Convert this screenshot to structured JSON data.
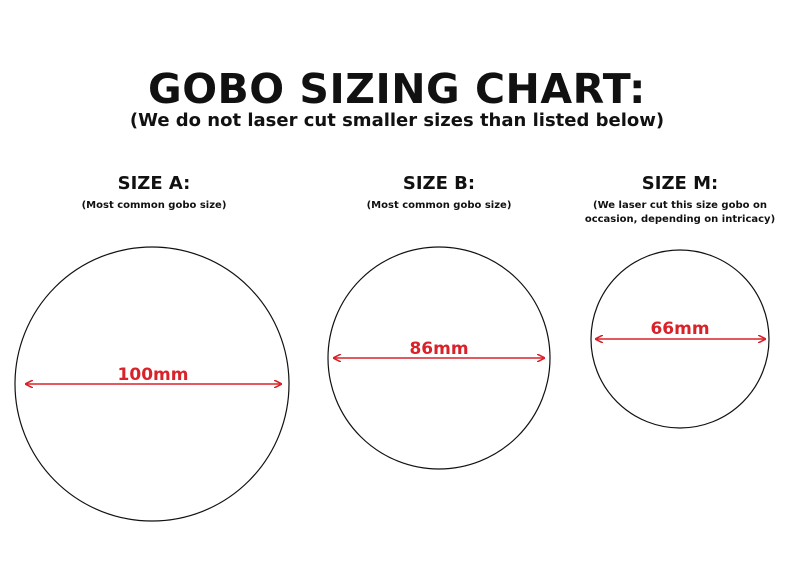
{
  "title": "GOBO SIZING CHART:",
  "subtitle": "(We do not laser cut smaller sizes than listed below)",
  "accent_color": "#d8232a",
  "sizes": [
    {
      "label": "SIZE A:",
      "note_lines": [
        "(Most common gobo size)"
      ],
      "diameter": "100mm"
    },
    {
      "label": "SIZE B:",
      "note_lines": [
        "(Most common gobo size)"
      ],
      "diameter": "86mm"
    },
    {
      "label": "SIZE M:",
      "note_lines": [
        "(We laser cut this size gobo on",
        "occasion, depending on intricacy)"
      ],
      "diameter": "66mm"
    }
  ]
}
